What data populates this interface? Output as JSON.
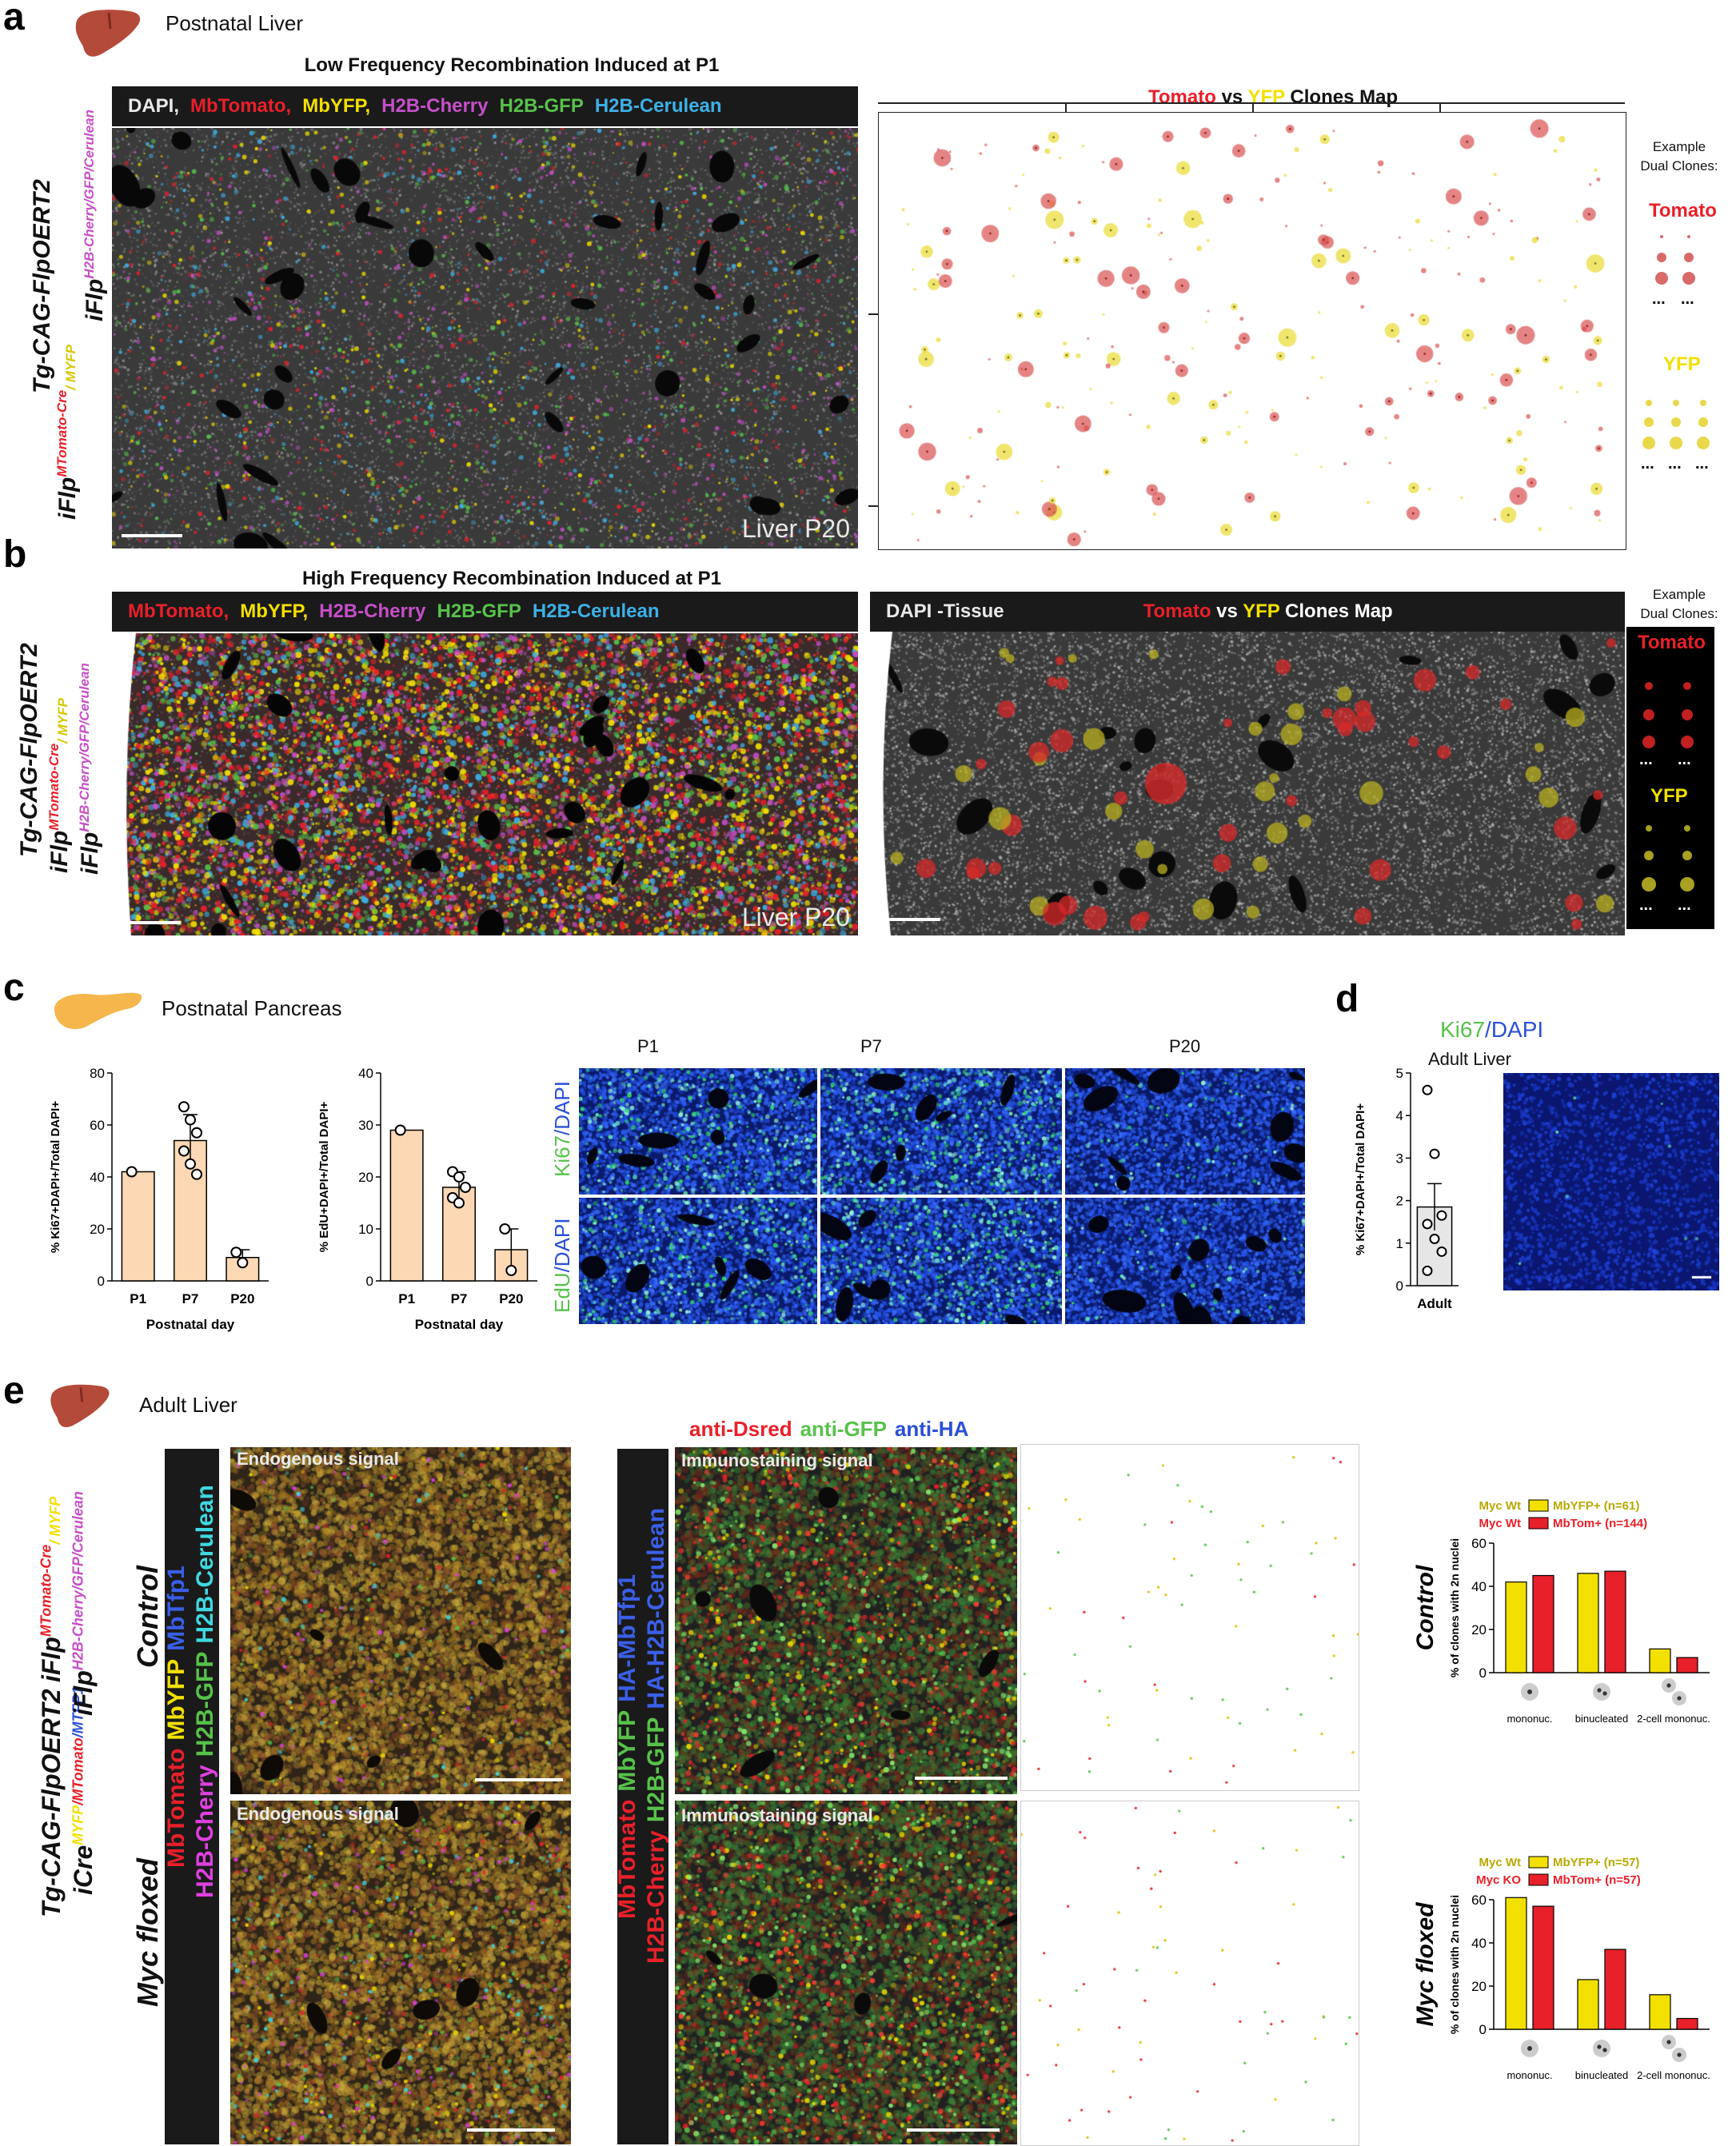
{
  "colors": {
    "tomato": "#e8202a",
    "yfp": "#f2e000",
    "cherry": "#c64fc8",
    "gfp": "#57c24a",
    "cerulean": "#3db0e6",
    "peach": "#fcd8b4",
    "bar_dark": "#1a1a1a"
  },
  "panel_a": {
    "letter": "a",
    "organ": "Postnatal Liver",
    "title": "Low Frequency Recombination Induced at P1",
    "channels": [
      {
        "text": "DAPI,",
        "color": "#e9e9e9"
      },
      {
        "text": "MbTomato,",
        "color": "#e8202a"
      },
      {
        "text": "MbYFP,",
        "color": "#f2e000"
      },
      {
        "text": "H2B-Cherry",
        "color": "#c64fc8"
      },
      {
        "text": "H2B-GFP",
        "color": "#57c24a"
      },
      {
        "text": "H2B-Cerulean",
        "color": "#3db0e6"
      }
    ],
    "image_label": "Liver P20",
    "map_title": {
      "a": "Tomato",
      "vs": "vs",
      "b": "YFP",
      "rest": "Clones Map"
    },
    "example_label": "Example Dual Clones:",
    "tomato_label": "Tomato",
    "yfp_label": "YFP",
    "ellipsis": "..."
  },
  "panel_b": {
    "letter": "b",
    "title": "High Frequency Recombination Induced at P1",
    "channels": [
      {
        "text": "MbTomato,",
        "color": "#e8202a"
      },
      {
        "text": "MbYFP,",
        "color": "#f2e000"
      },
      {
        "text": "H2B-Cherry",
        "color": "#c64fc8"
      },
      {
        "text": "H2B-GFP",
        "color": "#57c24a"
      },
      {
        "text": "H2B-Cerulean",
        "color": "#3db0e6"
      }
    ],
    "image_label": "Liver P20",
    "map_title": {
      "pre": "DAPI -Tissue",
      "a": "Tomato",
      "vs": "vs",
      "b": "YFP",
      "rest": "Clones Map"
    },
    "example_label": "Example Dual Clones:",
    "tomato_label": "Tomato",
    "yfp_label": "YFP",
    "ellipsis": "..."
  },
  "genotype_ab": {
    "line1": "Tg-CAG-FlpOERT2",
    "line2_a": "iFlp",
    "line2_sup": "MTomato-Cre",
    "line2_b": "/ MYFP",
    "line3_a": "iFlp",
    "line3_sup": "H2B-Cherry/GFP/Cerulean"
  },
  "panel_c": {
    "letter": "c",
    "organ": "Postnatal Pancreas",
    "micro_cols": [
      "P1",
      "P7",
      "P20"
    ],
    "micro_rows": [
      {
        "a": "Ki67",
        "b": "/DAPI"
      },
      {
        "a": "EdU",
        "b": "/DAPI"
      }
    ]
  },
  "panel_d": {
    "letter": "d",
    "stain": {
      "a": "Ki67",
      "b": "/DAPI"
    },
    "subtitle": "Adult Liver"
  },
  "panel_e": {
    "letter": "e",
    "organ": "Adult Liver",
    "row1": "Control",
    "row2": "Myc floxed",
    "endo_label": "Endogenous signal",
    "endo_label_overlap": "Endogenous signal",
    "immuno_label": "Immunostaining signal",
    "immuno_header": [
      {
        "text": "anti-Dsred",
        "color": "#e8202a"
      },
      {
        "text": "anti-GFP",
        "color": "#57c24a"
      },
      {
        "text": "anti-HA",
        "color": "#2a4fd8"
      }
    ],
    "endo_channels_top": [
      {
        "text": "MbTomato",
        "color": "#e8202a"
      },
      {
        "text": "MbYFP",
        "color": "#f2e000"
      },
      {
        "text": "MbTfp1",
        "color": "#3a5fe8"
      }
    ],
    "endo_channels_bottom": [
      {
        "text": "H2B-Cherry",
        "color": "#e040e0"
      },
      {
        "text": "H2B-GFP",
        "color": "#57c24a"
      },
      {
        "text": "H2B-Cerulean",
        "color": "#3fd8e0"
      }
    ],
    "immuno_channels_top": [
      {
        "text": "MbTomato",
        "color": "#e8202a"
      },
      {
        "text": "MbYFP",
        "color": "#57c24a"
      },
      {
        "text": "HA-MbTfp1",
        "color": "#3a5fe8"
      }
    ],
    "immuno_channels_bottom": [
      {
        "text": "H2B-Cherry",
        "color": "#e8202a"
      },
      {
        "text": "H2B-GFP",
        "color": "#57c24a"
      },
      {
        "text": "HA-H2B-Cerulean",
        "color": "#3a5fe8"
      }
    ],
    "genotype": {
      "line1": "Tg-CAG-FlpOERT2",
      "l2a": "iCre",
      "l2s1": "MYFP",
      "l2s2": "/MTomato",
      "l2s3": "/MTFP1",
      "l3a": "iFlp",
      "l3s": "MTomato-Cre",
      "l3b": "/ MYFP",
      "l4a": "iFlp",
      "l4s": "H2B-Cherry/GFP/Cerulean"
    }
  },
  "chart_data": [
    {
      "id": "c-ki67",
      "type": "bar",
      "categories": [
        "P1",
        "P7",
        "P20"
      ],
      "values": [
        42,
        54,
        9
      ],
      "points": [
        [
          42
        ],
        [
          67,
          62,
          57,
          50,
          45,
          41
        ],
        [
          11,
          7
        ]
      ],
      "err": [
        0,
        10,
        3
      ],
      "ylabel": "% Ki67+DAPI+/Total DAPI+",
      "xlabel": "Postnatal day",
      "yticks": [
        0,
        20,
        40,
        60,
        80
      ],
      "ylim": [
        0,
        80
      ]
    },
    {
      "id": "c-edu",
      "type": "bar",
      "categories": [
        "P1",
        "P7",
        "P20"
      ],
      "values": [
        29,
        18,
        6
      ],
      "points": [
        [
          29
        ],
        [
          21,
          20,
          18,
          16,
          15
        ],
        [
          10,
          2
        ]
      ],
      "err": [
        0,
        3,
        4
      ],
      "ylabel": "% EdU+DAPI+/Total DAPI+",
      "xlabel": "Postnatal day",
      "yticks": [
        0,
        10,
        20,
        30,
        40
      ],
      "ylim": [
        0,
        40
      ]
    },
    {
      "id": "d-ki67",
      "type": "bar",
      "categories": [
        "Adult"
      ],
      "values": [
        1.85
      ],
      "points": [
        [
          4.6,
          3.1,
          1.65,
          1.45,
          1.1,
          0.8,
          0.35
        ]
      ],
      "err": [
        0.55
      ],
      "ylabel": "% Ki67+DAPI+/Total DAPI+",
      "xlabel": "",
      "yticks": [
        0,
        1,
        2,
        3,
        4,
        5
      ],
      "ylim": [
        0,
        5
      ]
    },
    {
      "id": "e-control",
      "type": "bar",
      "title": "Control",
      "categories": [
        "mononuc.",
        "binucleated",
        "2-cell mononuc."
      ],
      "series": [
        {
          "name": "MbYFP+ (n=61)",
          "genotype": "Myc Wt",
          "values": [
            42,
            46,
            11
          ],
          "color": "#f2e000"
        },
        {
          "name": "MbTom+ (n=144)",
          "genotype": "Myc Wt",
          "values": [
            45,
            47,
            7
          ],
          "color": "#e8202a"
        }
      ],
      "ylabel": "% of clones with 2n nuclei",
      "yticks": [
        0,
        20,
        40,
        60
      ],
      "ylim": [
        0,
        60
      ]
    },
    {
      "id": "e-myc",
      "type": "bar",
      "title": "Myc floxed",
      "categories": [
        "mononuc.",
        "binucleated",
        "2-cell mononuc."
      ],
      "series": [
        {
          "name": "MbYFP+ (n=57)",
          "genotype": "Myc Wt",
          "values": [
            61,
            23,
            16
          ],
          "color": "#f2e000"
        },
        {
          "name": "MbTom+ (n=57)",
          "genotype": "Myc KO",
          "values": [
            57,
            37,
            5
          ],
          "color": "#e8202a"
        }
      ],
      "ylabel": "% of clones with 2n nuclei",
      "yticks": [
        0,
        20,
        40,
        60
      ],
      "ylim": [
        0,
        60
      ]
    }
  ]
}
